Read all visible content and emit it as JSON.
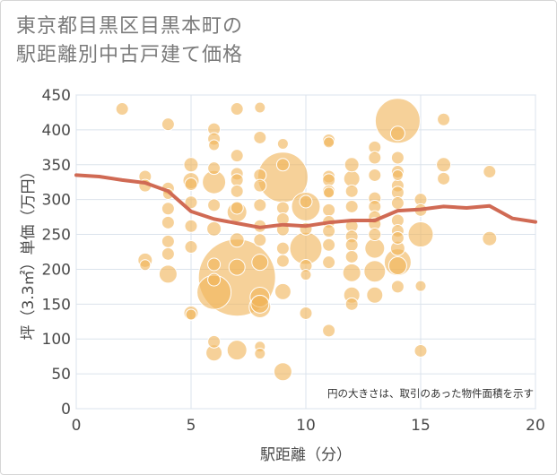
{
  "title_lines": [
    "東京都目黒区目黒本町の",
    "駅距離別中古戸建て価格"
  ],
  "chart_data": {
    "type": "scatter",
    "xlabel": "駅距離（分）",
    "ylabel": "坪（3.3㎡）単価（万円）",
    "xlim": [
      0,
      20
    ],
    "ylim": [
      0,
      450
    ],
    "xticks": [
      0,
      5,
      10,
      15,
      20
    ],
    "yticks": [
      0,
      50,
      100,
      150,
      200,
      250,
      300,
      350,
      400,
      450
    ],
    "grid": true,
    "note": "円の大きさは、取引のあった物件面積を示す",
    "colors": {
      "bubble": "#f0b45a",
      "trend": "#d06a54",
      "grid": "#dbe3ec",
      "plot_border": "#c9d5e2"
    },
    "points": [
      {
        "x": 2,
        "y": 430,
        "r": 7
      },
      {
        "x": 3,
        "y": 333,
        "r": 7
      },
      {
        "x": 3,
        "y": 320,
        "r": 7
      },
      {
        "x": 3,
        "y": 213,
        "r": 8
      },
      {
        "x": 3,
        "y": 206,
        "r": 6
      },
      {
        "x": 4,
        "y": 408,
        "r": 7
      },
      {
        "x": 4,
        "y": 316,
        "r": 7
      },
      {
        "x": 4,
        "y": 308,
        "r": 6
      },
      {
        "x": 4,
        "y": 287,
        "r": 7
      },
      {
        "x": 4,
        "y": 267,
        "r": 7
      },
      {
        "x": 4,
        "y": 240,
        "r": 7
      },
      {
        "x": 4,
        "y": 222,
        "r": 7
      },
      {
        "x": 4,
        "y": 193,
        "r": 10
      },
      {
        "x": 5,
        "y": 350,
        "r": 8
      },
      {
        "x": 5,
        "y": 327,
        "r": 9
      },
      {
        "x": 5,
        "y": 322,
        "r": 7
      },
      {
        "x": 5,
        "y": 296,
        "r": 7
      },
      {
        "x": 5,
        "y": 262,
        "r": 7
      },
      {
        "x": 5,
        "y": 232,
        "r": 7
      },
      {
        "x": 5,
        "y": 137,
        "r": 8
      },
      {
        "x": 5,
        "y": 135,
        "r": 6
      },
      {
        "x": 6,
        "y": 401,
        "r": 7
      },
      {
        "x": 6,
        "y": 387,
        "r": 7
      },
      {
        "x": 6,
        "y": 378,
        "r": 6
      },
      {
        "x": 6,
        "y": 345,
        "r": 7
      },
      {
        "x": 6,
        "y": 325,
        "r": 13
      },
      {
        "x": 6,
        "y": 292,
        "r": 7
      },
      {
        "x": 6,
        "y": 258,
        "r": 8
      },
      {
        "x": 6,
        "y": 207,
        "r": 7
      },
      {
        "x": 6,
        "y": 185,
        "r": 7
      },
      {
        "x": 6,
        "y": 167,
        "r": 19
      },
      {
        "x": 6,
        "y": 96,
        "r": 7
      },
      {
        "x": 6,
        "y": 80,
        "r": 9
      },
      {
        "x": 7,
        "y": 430,
        "r": 7
      },
      {
        "x": 7,
        "y": 363,
        "r": 7
      },
      {
        "x": 7,
        "y": 337,
        "r": 7
      },
      {
        "x": 7,
        "y": 328,
        "r": 7
      },
      {
        "x": 7,
        "y": 312,
        "r": 7
      },
      {
        "x": 7,
        "y": 288,
        "r": 7
      },
      {
        "x": 7,
        "y": 282,
        "r": 11
      },
      {
        "x": 7,
        "y": 242,
        "r": 8
      },
      {
        "x": 7,
        "y": 203,
        "r": 9
      },
      {
        "x": 7,
        "y": 188,
        "r": 43
      },
      {
        "x": 7,
        "y": 84,
        "r": 11
      },
      {
        "x": 8,
        "y": 432,
        "r": 6
      },
      {
        "x": 8,
        "y": 389,
        "r": 7
      },
      {
        "x": 8,
        "y": 335,
        "r": 7
      },
      {
        "x": 8,
        "y": 320,
        "r": 7
      },
      {
        "x": 8,
        "y": 292,
        "r": 7
      },
      {
        "x": 8,
        "y": 262,
        "r": 7
      },
      {
        "x": 8,
        "y": 242,
        "r": 7
      },
      {
        "x": 8,
        "y": 210,
        "r": 9
      },
      {
        "x": 8,
        "y": 160,
        "r": 11
      },
      {
        "x": 8,
        "y": 150,
        "r": 10
      },
      {
        "x": 8,
        "y": 146,
        "r": 12
      },
      {
        "x": 8,
        "y": 89,
        "r": 6
      },
      {
        "x": 8,
        "y": 79,
        "r": 6
      },
      {
        "x": 9,
        "y": 380,
        "r": 6
      },
      {
        "x": 9,
        "y": 350,
        "r": 7
      },
      {
        "x": 9,
        "y": 332,
        "r": 28
      },
      {
        "x": 9,
        "y": 288,
        "r": 7
      },
      {
        "x": 9,
        "y": 272,
        "r": 7
      },
      {
        "x": 9,
        "y": 257,
        "r": 7
      },
      {
        "x": 9,
        "y": 230,
        "r": 7
      },
      {
        "x": 9,
        "y": 212,
        "r": 7
      },
      {
        "x": 9,
        "y": 168,
        "r": 9
      },
      {
        "x": 9,
        "y": 53,
        "r": 10
      },
      {
        "x": 10,
        "y": 297,
        "r": 7
      },
      {
        "x": 10,
        "y": 290,
        "r": 16
      },
      {
        "x": 10,
        "y": 258,
        "r": 7
      },
      {
        "x": 10,
        "y": 230,
        "r": 18
      },
      {
        "x": 10,
        "y": 205,
        "r": 7
      },
      {
        "x": 10,
        "y": 192,
        "r": 6
      },
      {
        "x": 10,
        "y": 137,
        "r": 7
      },
      {
        "x": 11,
        "y": 385,
        "r": 7
      },
      {
        "x": 11,
        "y": 382,
        "r": 6
      },
      {
        "x": 11,
        "y": 333,
        "r": 7
      },
      {
        "x": 11,
        "y": 328,
        "r": 7
      },
      {
        "x": 11,
        "y": 312,
        "r": 7
      },
      {
        "x": 11,
        "y": 310,
        "r": 6
      },
      {
        "x": 11,
        "y": 285,
        "r": 7
      },
      {
        "x": 11,
        "y": 268,
        "r": 7
      },
      {
        "x": 11,
        "y": 255,
        "r": 7
      },
      {
        "x": 11,
        "y": 235,
        "r": 7
      },
      {
        "x": 11,
        "y": 210,
        "r": 7
      },
      {
        "x": 11,
        "y": 112,
        "r": 7
      },
      {
        "x": 12,
        "y": 350,
        "r": 8
      },
      {
        "x": 12,
        "y": 330,
        "r": 9
      },
      {
        "x": 12,
        "y": 312,
        "r": 7
      },
      {
        "x": 12,
        "y": 290,
        "r": 7
      },
      {
        "x": 12,
        "y": 262,
        "r": 7
      },
      {
        "x": 12,
        "y": 247,
        "r": 7
      },
      {
        "x": 12,
        "y": 235,
        "r": 7
      },
      {
        "x": 12,
        "y": 218,
        "r": 7
      },
      {
        "x": 12,
        "y": 195,
        "r": 10
      },
      {
        "x": 12,
        "y": 163,
        "r": 9
      },
      {
        "x": 12,
        "y": 150,
        "r": 7
      },
      {
        "x": 13,
        "y": 375,
        "r": 7
      },
      {
        "x": 13,
        "y": 360,
        "r": 7
      },
      {
        "x": 13,
        "y": 335,
        "r": 7
      },
      {
        "x": 13,
        "y": 302,
        "r": 7
      },
      {
        "x": 13,
        "y": 290,
        "r": 7
      },
      {
        "x": 13,
        "y": 275,
        "r": 7
      },
      {
        "x": 13,
        "y": 265,
        "r": 7
      },
      {
        "x": 13,
        "y": 250,
        "r": 7
      },
      {
        "x": 13,
        "y": 230,
        "r": 11
      },
      {
        "x": 13,
        "y": 197,
        "r": 12
      },
      {
        "x": 13,
        "y": 163,
        "r": 9
      },
      {
        "x": 14,
        "y": 413,
        "r": 25
      },
      {
        "x": 14,
        "y": 395,
        "r": 8
      },
      {
        "x": 14,
        "y": 360,
        "r": 7
      },
      {
        "x": 14,
        "y": 340,
        "r": 7
      },
      {
        "x": 14,
        "y": 335,
        "r": 6
      },
      {
        "x": 14,
        "y": 320,
        "r": 7
      },
      {
        "x": 14,
        "y": 310,
        "r": 7
      },
      {
        "x": 14,
        "y": 295,
        "r": 7
      },
      {
        "x": 14,
        "y": 270,
        "r": 7
      },
      {
        "x": 14,
        "y": 255,
        "r": 7
      },
      {
        "x": 14,
        "y": 245,
        "r": 7
      },
      {
        "x": 14,
        "y": 230,
        "r": 8
      },
      {
        "x": 14,
        "y": 210,
        "r": 15
      },
      {
        "x": 14,
        "y": 205,
        "r": 10
      },
      {
        "x": 14,
        "y": 175,
        "r": 7
      },
      {
        "x": 15,
        "y": 300,
        "r": 7
      },
      {
        "x": 15,
        "y": 285,
        "r": 7
      },
      {
        "x": 15,
        "y": 250,
        "r": 14
      },
      {
        "x": 15,
        "y": 176,
        "r": 6
      },
      {
        "x": 15,
        "y": 83,
        "r": 7
      },
      {
        "x": 16,
        "y": 415,
        "r": 7
      },
      {
        "x": 16,
        "y": 350,
        "r": 8
      },
      {
        "x": 16,
        "y": 330,
        "r": 7
      },
      {
        "x": 18,
        "y": 340,
        "r": 7
      },
      {
        "x": 18,
        "y": 244,
        "r": 8
      }
    ],
    "trend": {
      "x": [
        0,
        1,
        2,
        3,
        4,
        5,
        6,
        7,
        8,
        9,
        10,
        11,
        12,
        13,
        14,
        15,
        16,
        17,
        18,
        19,
        20
      ],
      "y": [
        335,
        333,
        328,
        324,
        312,
        283,
        272,
        266,
        260,
        264,
        262,
        267,
        270,
        270,
        284,
        286,
        290,
        288,
        291,
        273,
        268
      ]
    }
  }
}
